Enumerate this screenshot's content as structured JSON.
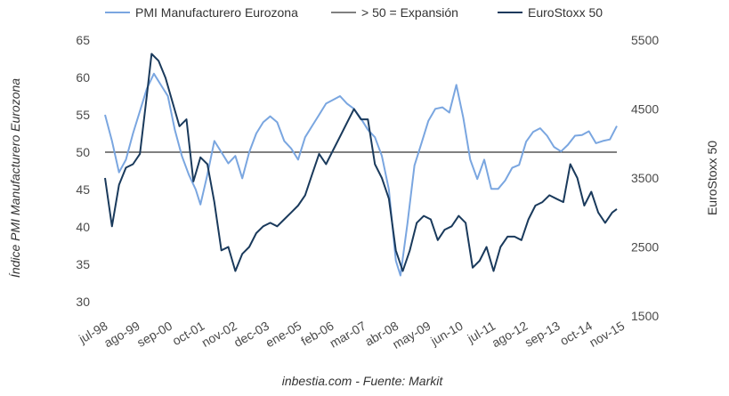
{
  "chart_data": {
    "type": "line",
    "title": "",
    "source": "inbestia.com - Fuente: Markit",
    "ylabel_left": "Índice PMI Manufacturero Eurozona",
    "ylabel_right": "EuroStoxx 50",
    "ylim_left": [
      30,
      65
    ],
    "ylim_right": [
      1500,
      5500
    ],
    "yticks_left": [
      "65",
      "60",
      "55",
      "50",
      "45",
      "40",
      "35",
      "30"
    ],
    "yticks_right": [
      "5500",
      "4500",
      "3500",
      "2500",
      "1500"
    ],
    "x_start": "1998-07",
    "x_end": "2016-11",
    "xticks": [
      "jul-98",
      "ago-99",
      "sep-00",
      "oct-01",
      "nov-02",
      "dec-03",
      "ene-05",
      "feb-06",
      "mar-07",
      "abr-08",
      "may-09",
      "jun-10",
      "jul-11",
      "ago-12",
      "sep-13",
      "oct-14",
      "nov-15"
    ],
    "legend_position": "top",
    "grid": false,
    "series": [
      {
        "name": "PMI Manufacturero Eurozona",
        "axis": "left",
        "color": "#7aa6e0",
        "points": [
          [
            "1998-07",
            55.0
          ],
          [
            "1998-10",
            51.5
          ],
          [
            "1999-01",
            47.3
          ],
          [
            "1999-04",
            49.0
          ],
          [
            "1999-07",
            52.5
          ],
          [
            "1999-10",
            55.5
          ],
          [
            "2000-01",
            58.5
          ],
          [
            "2000-04",
            60.5
          ],
          [
            "2000-07",
            59.0
          ],
          [
            "2000-10",
            57.5
          ],
          [
            "2001-01",
            53.0
          ],
          [
            "2001-04",
            49.5
          ],
          [
            "2001-07",
            47.0
          ],
          [
            "2001-10",
            45.0
          ],
          [
            "2001-12",
            43.0
          ],
          [
            "2002-03",
            47.0
          ],
          [
            "2002-06",
            51.5
          ],
          [
            "2002-09",
            50.0
          ],
          [
            "2002-12",
            48.5
          ],
          [
            "2003-03",
            49.5
          ],
          [
            "2003-06",
            46.5
          ],
          [
            "2003-09",
            50.0
          ],
          [
            "2003-12",
            52.5
          ],
          [
            "2004-03",
            54.0
          ],
          [
            "2004-06",
            54.8
          ],
          [
            "2004-09",
            54.0
          ],
          [
            "2004-12",
            51.5
          ],
          [
            "2005-03",
            50.5
          ],
          [
            "2005-06",
            49.0
          ],
          [
            "2005-09",
            52.0
          ],
          [
            "2005-12",
            53.5
          ],
          [
            "2006-03",
            55.0
          ],
          [
            "2006-06",
            56.5
          ],
          [
            "2006-09",
            57.0
          ],
          [
            "2006-12",
            57.5
          ],
          [
            "2007-03",
            56.5
          ],
          [
            "2007-06",
            55.8
          ],
          [
            "2007-09",
            54.5
          ],
          [
            "2007-12",
            53.0
          ],
          [
            "2008-03",
            52.0
          ],
          [
            "2008-06",
            49.5
          ],
          [
            "2008-09",
            45.0
          ],
          [
            "2008-12",
            35.5
          ],
          [
            "2009-02",
            33.5
          ],
          [
            "2009-05",
            40.5
          ],
          [
            "2009-08",
            48.2
          ],
          [
            "2009-11",
            51.2
          ],
          [
            "2010-02",
            54.2
          ],
          [
            "2010-05",
            55.8
          ],
          [
            "2010-08",
            56.0
          ],
          [
            "2010-11",
            55.3
          ],
          [
            "2011-02",
            59.0
          ],
          [
            "2011-05",
            54.6
          ],
          [
            "2011-08",
            49.0
          ],
          [
            "2011-11",
            46.4
          ],
          [
            "2012-02",
            49.0
          ],
          [
            "2012-05",
            45.1
          ],
          [
            "2012-08",
            45.1
          ],
          [
            "2012-11",
            46.2
          ],
          [
            "2013-02",
            47.9
          ],
          [
            "2013-05",
            48.3
          ],
          [
            "2013-08",
            51.4
          ],
          [
            "2013-11",
            52.7
          ],
          [
            "2014-02",
            53.2
          ],
          [
            "2014-05",
            52.2
          ],
          [
            "2014-08",
            50.7
          ],
          [
            "2014-11",
            50.1
          ],
          [
            "2015-02",
            51.0
          ],
          [
            "2015-05",
            52.2
          ],
          [
            "2015-08",
            52.3
          ],
          [
            "2015-11",
            52.8
          ],
          [
            "2016-02",
            51.2
          ],
          [
            "2016-05",
            51.5
          ],
          [
            "2016-08",
            51.7
          ],
          [
            "2016-11",
            53.5
          ]
        ]
      },
      {
        "name": "> 50 = Expansión",
        "axis": "left",
        "color": "#000000",
        "points": [
          [
            "1998-07",
            50
          ],
          [
            "2016-11",
            50
          ]
        ]
      },
      {
        "name": "EuroStoxx 50",
        "axis": "right",
        "color": "#1a3a5c",
        "points": [
          [
            "1998-07",
            3500
          ],
          [
            "1998-10",
            2800
          ],
          [
            "1999-01",
            3400
          ],
          [
            "1999-04",
            3650
          ],
          [
            "1999-07",
            3700
          ],
          [
            "1999-10",
            3850
          ],
          [
            "2000-01",
            4700
          ],
          [
            "2000-03",
            5300
          ],
          [
            "2000-06",
            5200
          ],
          [
            "2000-09",
            4950
          ],
          [
            "2000-12",
            4600
          ],
          [
            "2001-03",
            4250
          ],
          [
            "2001-06",
            4350
          ],
          [
            "2001-09",
            3450
          ],
          [
            "2001-12",
            3800
          ],
          [
            "2002-03",
            3700
          ],
          [
            "2002-06",
            3150
          ],
          [
            "2002-09",
            2450
          ],
          [
            "2002-12",
            2500
          ],
          [
            "2003-03",
            2150
          ],
          [
            "2003-06",
            2400
          ],
          [
            "2003-09",
            2500
          ],
          [
            "2003-12",
            2700
          ],
          [
            "2004-03",
            2800
          ],
          [
            "2004-06",
            2850
          ],
          [
            "2004-09",
            2800
          ],
          [
            "2004-12",
            2900
          ],
          [
            "2005-03",
            3000
          ],
          [
            "2005-06",
            3100
          ],
          [
            "2005-09",
            3250
          ],
          [
            "2005-12",
            3550
          ],
          [
            "2006-03",
            3850
          ],
          [
            "2006-06",
            3700
          ],
          [
            "2006-09",
            3900
          ],
          [
            "2006-12",
            4100
          ],
          [
            "2007-03",
            4300
          ],
          [
            "2007-06",
            4500
          ],
          [
            "2007-09",
            4350
          ],
          [
            "2007-12",
            4350
          ],
          [
            "2008-03",
            3700
          ],
          [
            "2008-06",
            3500
          ],
          [
            "2008-09",
            3200
          ],
          [
            "2008-12",
            2450
          ],
          [
            "2009-03",
            2150
          ],
          [
            "2009-06",
            2450
          ],
          [
            "2009-09",
            2850
          ],
          [
            "2009-12",
            2950
          ],
          [
            "2010-03",
            2900
          ],
          [
            "2010-06",
            2600
          ],
          [
            "2010-09",
            2750
          ],
          [
            "2010-12",
            2800
          ],
          [
            "2011-03",
            2950
          ],
          [
            "2011-06",
            2850
          ],
          [
            "2011-09",
            2200
          ],
          [
            "2011-12",
            2300
          ],
          [
            "2012-03",
            2500
          ],
          [
            "2012-06",
            2150
          ],
          [
            "2012-09",
            2500
          ],
          [
            "2012-12",
            2650
          ],
          [
            "2013-03",
            2650
          ],
          [
            "2013-06",
            2600
          ],
          [
            "2013-09",
            2900
          ],
          [
            "2013-12",
            3100
          ],
          [
            "2014-03",
            3150
          ],
          [
            "2014-06",
            3250
          ],
          [
            "2014-09",
            3200
          ],
          [
            "2014-12",
            3150
          ],
          [
            "2015-03",
            3700
          ],
          [
            "2015-06",
            3500
          ],
          [
            "2015-09",
            3100
          ],
          [
            "2015-12",
            3300
          ],
          [
            "2016-03",
            3000
          ],
          [
            "2016-06",
            2850
          ],
          [
            "2016-09",
            3000
          ],
          [
            "2016-11",
            3050
          ]
        ]
      }
    ]
  }
}
